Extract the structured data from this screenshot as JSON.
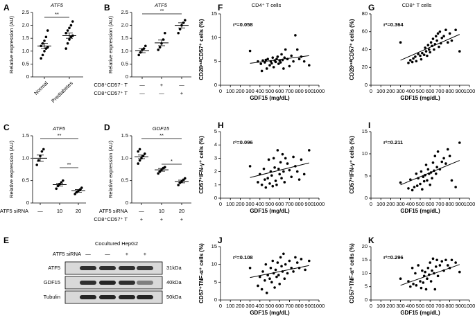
{
  "chart_data": [
    {
      "type": "dot",
      "panel": "A",
      "title": "ATF5",
      "y_label": "Relative expression (AU)",
      "categories": [
        "Normal",
        "Prediabetes"
      ],
      "points": [
        [
          0.72,
          0.85,
          1.0,
          1.1,
          1.15,
          1.2,
          1.3,
          1.4,
          1.55,
          1.8
        ],
        [
          1.1,
          1.3,
          1.45,
          1.55,
          1.6,
          1.7,
          1.8,
          1.9,
          2.0,
          2.15
        ]
      ],
      "means": [
        1.2,
        1.6
      ],
      "sems": [
        0.1,
        0.1
      ],
      "ylim": [
        0,
        2.5
      ],
      "yticks": [
        0,
        0.5,
        {
          "value": 1,
          "label": "1.0"
        },
        1.5,
        {
          "value": 2,
          "label": "2.0"
        },
        2.5
      ],
      "significance": [
        "**"
      ]
    },
    {
      "type": "dot",
      "panel": "B",
      "title": "ATF5",
      "y_label": "Relative expression (AU)",
      "conditions": [
        {
          "label": "CD8⁺CD57⁻ T",
          "values": [
            "—",
            "+",
            "—"
          ]
        },
        {
          "label": "CD8⁺CD57⁺ T",
          "values": [
            "—",
            "—",
            "+"
          ]
        }
      ],
      "points": [
        [
          0.85,
          0.95,
          1.05,
          1.1,
          1.2
        ],
        [
          1.05,
          1.15,
          1.3,
          1.45,
          1.7
        ],
        [
          1.7,
          1.85,
          2.0,
          2.1,
          2.2
        ]
      ],
      "means": [
        1.02,
        1.32,
        2.0
      ],
      "sems": [
        0.08,
        0.11,
        0.1
      ],
      "ylim": [
        0,
        2.5
      ],
      "yticks": [
        0,
        0.5,
        {
          "value": 1,
          "label": "1.0"
        },
        1.5,
        {
          "value": 2,
          "label": "2.0"
        },
        2.5
      ],
      "significance": [
        "**"
      ]
    },
    {
      "type": "dot",
      "panel": "C",
      "title": "ATF5",
      "y_label": "Relative expression (AU)",
      "conditions": [
        {
          "label": "ATF5 siRNA",
          "values": [
            "—",
            "10",
            "20"
          ]
        }
      ],
      "points": [
        [
          0.85,
          0.95,
          1.05,
          1.15,
          1.2
        ],
        [
          0.32,
          0.38,
          0.42,
          0.46,
          0.5
        ],
        [
          0.2,
          0.24,
          0.27,
          0.3,
          0.34
        ]
      ],
      "means": [
        1.0,
        0.41,
        0.27
      ],
      "sems": [
        0.07,
        0.03,
        0.03
      ],
      "ylim": [
        0,
        1.5
      ],
      "yticks": [
        0,
        0.5,
        {
          "value": 1,
          "label": "1.0"
        },
        1.5
      ],
      "significance": [
        "**",
        "**"
      ]
    },
    {
      "type": "dot",
      "panel": "D",
      "title": "GDF15",
      "y_label": "Relative expression (AU)",
      "conditions": [
        {
          "label": "ATF5 siRNA",
          "values": [
            "—",
            "10",
            "20"
          ]
        },
        {
          "label": "CD8⁺CD57⁺ T",
          "values": [
            "+",
            "+",
            "+"
          ]
        }
      ],
      "points": [
        [
          0.88,
          0.95,
          1.0,
          1.05,
          1.1,
          1.15,
          1.2
        ],
        [
          0.66,
          0.7,
          0.74,
          0.78,
          0.8
        ],
        [
          0.4,
          0.45,
          0.48,
          0.52,
          0.55
        ]
      ],
      "means": [
        1.03,
        0.74,
        0.48
      ],
      "sems": [
        0.04,
        0.03,
        0.03
      ],
      "ylim": [
        0,
        1.5
      ],
      "yticks": [
        0,
        0.5,
        {
          "value": 1,
          "label": "1.0"
        },
        1.5
      ],
      "significance": [
        "**",
        "*"
      ]
    },
    {
      "type": "scatter",
      "panel": "F",
      "title": "CD4⁺ T cells",
      "x_label": "GDF15 (mg/dL)",
      "y_label": "CD28ⁿᵘˡˡCD57⁺ cells (%)",
      "annotation": "r²=0.058",
      "color": "#000000",
      "x": [
        300,
        380,
        410,
        420,
        430,
        450,
        460,
        470,
        480,
        500,
        510,
        520,
        530,
        540,
        550,
        560,
        570,
        580,
        590,
        600,
        610,
        620,
        630,
        640,
        650,
        660,
        680,
        700,
        720,
        740,
        760,
        780,
        800,
        820,
        850,
        900
      ],
      "values": [
        7.2,
        5,
        4.5,
        3,
        5.2,
        4.8,
        5.3,
        3.5,
        5.5,
        4.2,
        5,
        4.6,
        5.8,
        3.8,
        5.2,
        4.9,
        5.5,
        6,
        4.5,
        5.2,
        4.8,
        6.5,
        5.3,
        3.5,
        5.8,
        7.5,
        5.5,
        4,
        6.2,
        5,
        10.5,
        7.5,
        5.5,
        6,
        5,
        4.2
      ],
      "fit": {
        "x": [
          300,
          900
        ],
        "values": [
          4.6,
          6.2
        ]
      },
      "xlim": [
        0,
        1000
      ],
      "xticks": [
        0,
        100,
        200,
        300,
        400,
        500,
        600,
        700,
        800,
        900,
        1000
      ],
      "ylim": [
        0,
        15
      ],
      "yticks": [
        0,
        5,
        10,
        15
      ]
    },
    {
      "type": "scatter",
      "panel": "G",
      "title": "CD8⁺ T cells",
      "x_label": "GDF15 (mg/dL)",
      "y_label": "CD28ⁿᵘˡˡCD57⁺ cells (%)",
      "annotation": "r²=0.364",
      "color": "#000000",
      "x": [
        300,
        380,
        400,
        420,
        430,
        450,
        460,
        480,
        500,
        510,
        520,
        540,
        550,
        560,
        570,
        580,
        590,
        600,
        610,
        620,
        630,
        640,
        650,
        660,
        670,
        680,
        690,
        700,
        710,
        720,
        740,
        760,
        780,
        800,
        820,
        860,
        900
      ],
      "values": [
        48,
        25,
        28,
        26,
        30,
        32,
        27,
        35,
        33,
        29,
        36,
        34,
        42,
        38,
        33,
        45,
        40,
        37,
        48,
        44,
        52,
        40,
        46,
        55,
        50,
        58,
        43,
        60,
        47,
        53,
        55,
        62,
        48,
        58,
        50,
        62,
        38
      ],
      "fit": {
        "x": [
          300,
          900
        ],
        "values": [
          28,
          57
        ]
      },
      "xlim": [
        0,
        1000
      ],
      "xticks": [
        0,
        100,
        200,
        300,
        400,
        500,
        600,
        700,
        800,
        900,
        1000
      ],
      "ylim": [
        0,
        80
      ],
      "yticks": [
        0,
        20,
        40,
        60,
        80
      ]
    },
    {
      "type": "scatter",
      "panel": "H",
      "x_label": "GDF15 (mg/dL)",
      "y_label": "CD57⁺IFN-γ⁺ cells (%)",
      "annotation": "r²=0.096",
      "color": "#000000",
      "x": [
        300,
        380,
        400,
        420,
        440,
        450,
        460,
        480,
        490,
        500,
        510,
        520,
        530,
        540,
        550,
        560,
        570,
        580,
        590,
        600,
        610,
        620,
        630,
        640,
        650,
        660,
        680,
        700,
        720,
        740,
        760,
        780,
        800,
        820,
        850,
        900
      ],
      "values": [
        2.4,
        1.2,
        1.8,
        1.0,
        2.2,
        1.4,
        0.8,
        1.5,
        2.9,
        1.1,
        2.0,
        1.7,
        0.9,
        3.0,
        2.3,
        1.3,
        1.0,
        3.6,
        2.2,
        1.8,
        2.7,
        1.5,
        3.3,
        2.0,
        1.2,
        3.0,
        2.6,
        2.1,
        1.6,
        3.1,
        2.4,
        2.0,
        1.4,
        2.9,
        1.8,
        3.6
      ],
      "fit": {
        "x": [
          300,
          900
        ],
        "values": [
          1.55,
          2.65
        ]
      },
      "xlim": [
        0,
        1000
      ],
      "xticks": [
        0,
        100,
        200,
        300,
        400,
        500,
        600,
        700,
        800,
        900,
        1000
      ],
      "ylim": [
        0,
        5
      ],
      "yticks": [
        0,
        1,
        2,
        3,
        4,
        5
      ]
    },
    {
      "type": "scatter",
      "panel": "I",
      "x_label": "GDF15 (mg/dL)",
      "y_label": "CD57⁺IFN-γ⁺ cells (%)",
      "annotation": "r²=0.211",
      "color": "#000000",
      "x": [
        300,
        380,
        400,
        420,
        440,
        460,
        470,
        480,
        500,
        510,
        520,
        530,
        540,
        550,
        560,
        570,
        580,
        590,
        600,
        610,
        620,
        630,
        640,
        650,
        660,
        670,
        680,
        700,
        720,
        740,
        760,
        780,
        800,
        820,
        860,
        900
      ],
      "values": [
        3.5,
        2.2,
        4.2,
        1.8,
        2.5,
        5.5,
        2.8,
        4.5,
        3.2,
        6,
        2,
        4.8,
        3.8,
        5.2,
        7.5,
        4,
        6.5,
        5.5,
        3,
        5.8,
        4.5,
        8,
        6.2,
        9.5,
        5.5,
        7,
        10.5,
        6.5,
        8.2,
        9,
        7.8,
        11,
        9.5,
        4,
        2.5,
        12.5
      ],
      "fit": {
        "x": [
          300,
          900
        ],
        "values": [
          3.0,
          8.5
        ]
      },
      "xlim": [
        0,
        1000
      ],
      "xticks": [
        0,
        100,
        200,
        300,
        400,
        500,
        600,
        700,
        800,
        900,
        1000
      ],
      "ylim": [
        0,
        15
      ],
      "yticks": [
        0,
        5,
        10,
        15
      ]
    },
    {
      "type": "scatter",
      "panel": "J",
      "x_label": "GDF15 (mg/dL)",
      "y_label": "CD57⁺TNF-α⁺ cells (%)",
      "annotation": "r²=0.108",
      "color": "#000000",
      "x": [
        300,
        380,
        400,
        420,
        430,
        450,
        460,
        470,
        480,
        500,
        510,
        520,
        530,
        540,
        550,
        560,
        570,
        580,
        590,
        600,
        610,
        620,
        630,
        640,
        650,
        660,
        680,
        700,
        720,
        740,
        760,
        780,
        800,
        820,
        860,
        900
      ],
      "values": [
        9,
        4,
        6.5,
        3,
        8,
        5.5,
        10,
        2,
        7,
        6,
        9,
        5,
        11,
        7.5,
        3.5,
        8.5,
        6.5,
        10.5,
        7,
        4.5,
        12,
        9.5,
        8,
        13,
        6,
        10,
        7.5,
        11,
        9,
        8,
        12,
        10.5,
        9,
        11.5,
        8.5,
        11
      ],
      "fit": {
        "x": [
          300,
          900
        ],
        "values": [
          6.3,
          9.7
        ]
      },
      "xlim": [
        0,
        1000
      ],
      "xticks": [
        0,
        100,
        200,
        300,
        400,
        500,
        600,
        700,
        800,
        900,
        1000
      ],
      "ylim": [
        0,
        15
      ],
      "yticks": [
        0,
        5,
        10,
        15
      ]
    },
    {
      "type": "scatter",
      "panel": "K",
      "x_label": "GDF15 (mg/dL)",
      "y_label": "CD57⁺TNF-α⁺ cells (%)",
      "annotation": "r²=0.296",
      "color": "#000000",
      "x": [
        300,
        380,
        400,
        420,
        430,
        450,
        460,
        480,
        500,
        510,
        520,
        530,
        540,
        550,
        560,
        570,
        580,
        590,
        600,
        610,
        620,
        630,
        640,
        650,
        660,
        670,
        680,
        700,
        720,
        740,
        760,
        780,
        800,
        820,
        860,
        900
      ],
      "values": [
        8,
        7,
        5,
        12,
        6,
        10,
        5.5,
        13,
        7,
        4.5,
        11,
        6.5,
        9,
        10.5,
        4,
        8,
        12,
        9.5,
        14,
        7,
        11,
        15.5,
        10,
        4,
        12.5,
        15,
        9,
        13,
        14.5,
        11,
        15,
        13,
        12,
        15,
        14,
        10.5
      ],
      "fit": {
        "x": [
          300,
          900
        ],
        "values": [
          5.5,
          13.3
        ]
      },
      "xlim": [
        0,
        1000
      ],
      "xticks": [
        0,
        100,
        200,
        300,
        400,
        500,
        600,
        700,
        800,
        900,
        1000
      ],
      "ylim": [
        0,
        20
      ],
      "yticks": [
        0,
        5,
        10,
        15,
        20
      ]
    }
  ],
  "blot": {
    "panel": "E",
    "title": "Cocultured HepG2",
    "condition": {
      "label": "ATF5 siRNA",
      "values": [
        "—",
        "—",
        "+",
        "+"
      ]
    },
    "bands": [
      {
        "name": "ATF5",
        "size": "31kDa"
      },
      {
        "name": "GDF15",
        "size": "40kDa"
      },
      {
        "name": "Tubulin",
        "size": "50kDa"
      }
    ]
  }
}
